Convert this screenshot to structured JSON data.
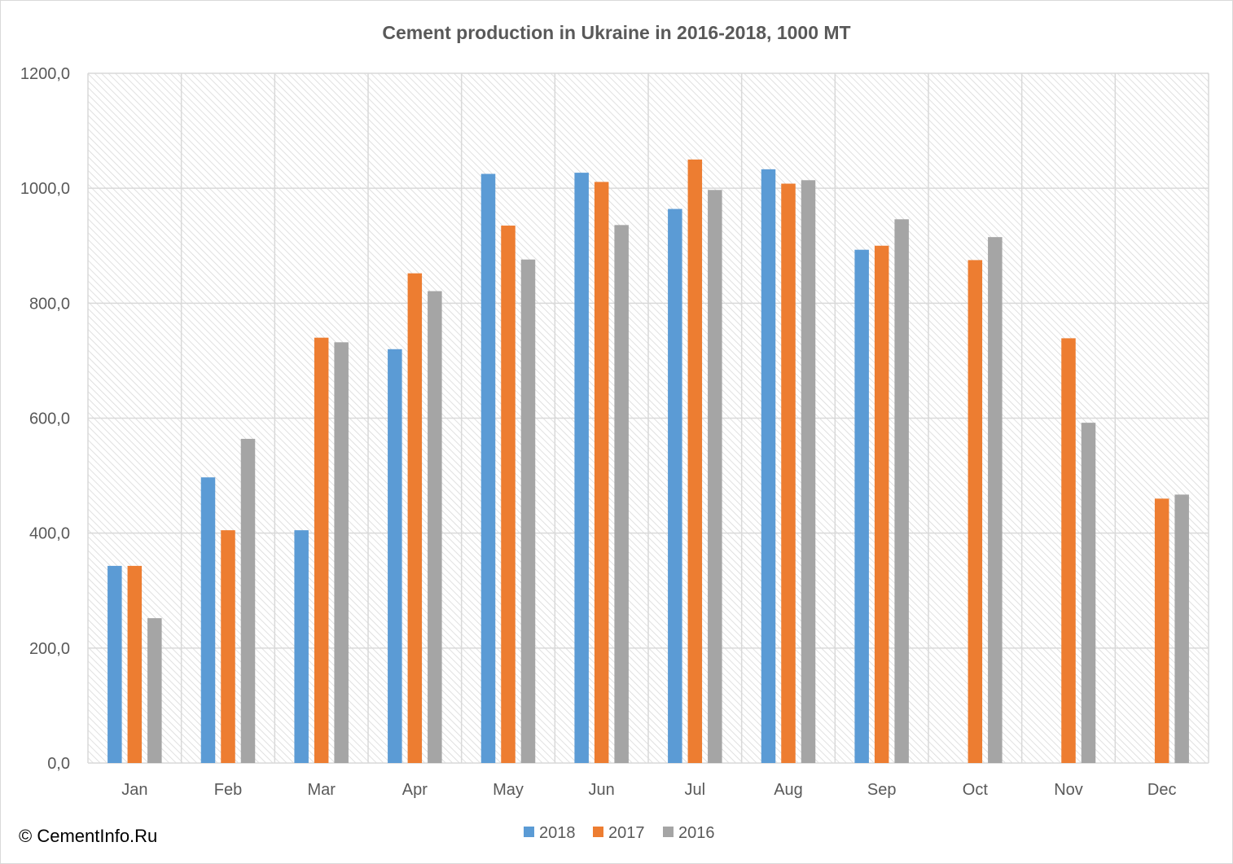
{
  "chart_data": {
    "type": "bar",
    "title": "Cement production in Ukraine in 2016-2018, 1000 MT",
    "xlabel": "",
    "ylabel": "",
    "ylim": [
      0,
      1200
    ],
    "y_ticks": [
      "0,0",
      "200,0",
      "400,0",
      "600,0",
      "800,0",
      "1000,0",
      "1200,0"
    ],
    "y_tick_values": [
      0,
      200,
      400,
      600,
      800,
      1000,
      1200
    ],
    "grid": true,
    "legend_position": "bottom",
    "categories": [
      "Jan",
      "Feb",
      "Mar",
      "Apr",
      "May",
      "Jun",
      "Jul",
      "Aug",
      "Sep",
      "Oct",
      "Nov",
      "Dec"
    ],
    "series": [
      {
        "name": "2018",
        "color": "#5b9bd5",
        "values": [
          343,
          497,
          405,
          720,
          1025,
          1027,
          964,
          1033,
          893,
          null,
          null,
          null
        ]
      },
      {
        "name": "2017",
        "color": "#ed7d31",
        "values": [
          343,
          405,
          740,
          852,
          935,
          1011,
          1050,
          1008,
          900,
          875,
          739,
          460
        ]
      },
      {
        "name": "2016",
        "color": "#a5a5a5",
        "values": [
          252,
          564,
          732,
          821,
          876,
          936,
          997,
          1014,
          946,
          915,
          592,
          467
        ]
      }
    ]
  },
  "copyright": "© CementInfo.Ru"
}
